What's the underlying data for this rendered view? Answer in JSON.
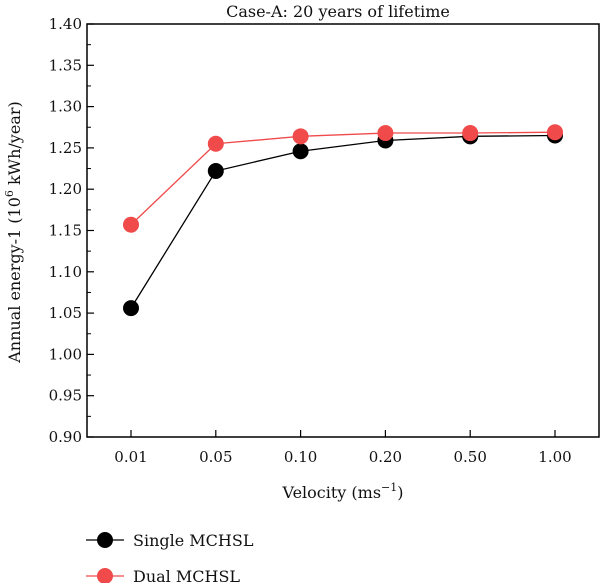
{
  "chart_data": {
    "type": "line",
    "title": "Case-A: 20 years of lifetime",
    "xlabel": {
      "main": "Velocity (ms",
      "sup": "−1",
      "end": ")"
    },
    "ylabel": {
      "main": "Annual energy-1 (10",
      "sup": "6",
      "end": " kWh/year)"
    },
    "categories": [
      "0.01",
      "0.05",
      "0.10",
      "0.20",
      "0.50",
      "1.00"
    ],
    "ylim": [
      0.9,
      1.4
    ],
    "yticks": [
      "0.90",
      "0.95",
      "1.00",
      "1.05",
      "1.10",
      "1.15",
      "1.20",
      "1.25",
      "1.30",
      "1.35",
      "1.40"
    ],
    "grid": false,
    "legend_position": "bottom-left",
    "series": [
      {
        "name": "Single MCHSL",
        "color": "#000000",
        "line_color": "#000000",
        "values": [
          1.056,
          1.222,
          1.246,
          1.259,
          1.264,
          1.265
        ]
      },
      {
        "name": "Dual MCHSL",
        "color": "#f04a4a",
        "line_color": "#f04a4a",
        "values": [
          1.157,
          1.255,
          1.264,
          1.268,
          1.268,
          1.269
        ]
      }
    ]
  }
}
